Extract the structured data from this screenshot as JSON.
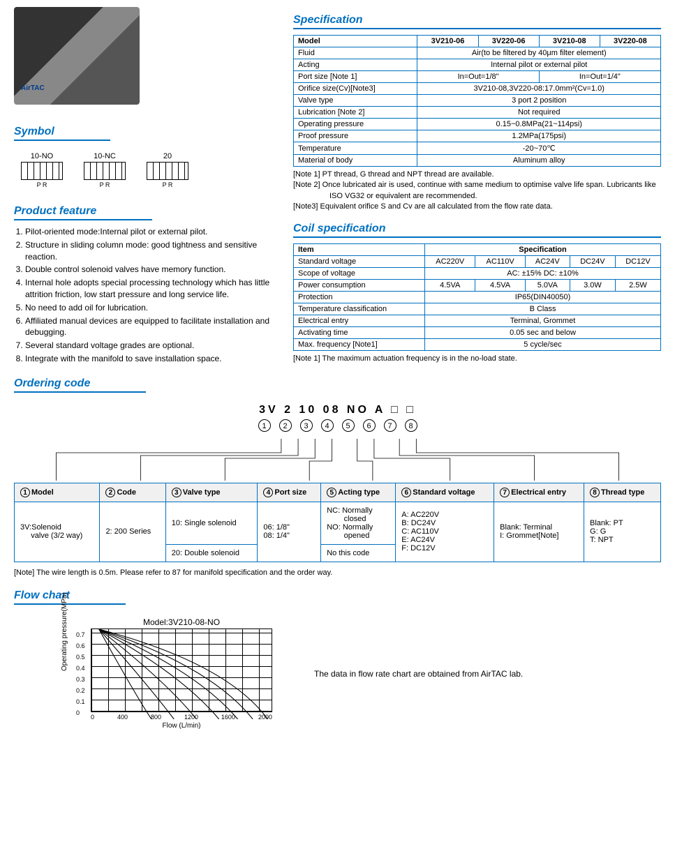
{
  "headings": {
    "symbol": "Symbol",
    "feature": "Product feature",
    "spec": "Specification",
    "coil": "Coil specification",
    "order": "Ordering code",
    "flow": "Flow chart"
  },
  "symbols": [
    "10-NO",
    "10-NC",
    "20"
  ],
  "spec_table": {
    "header": [
      "Model",
      "3V210-06",
      "3V220-06",
      "3V210-08",
      "3V220-08"
    ],
    "rows": [
      {
        "label": "Fluid",
        "value": "Air(to be filtered by 40μm filter element)",
        "span": 4
      },
      {
        "label": "Acting",
        "value": "Internal pilot or external pilot",
        "span": 4
      },
      {
        "label": "Port size  [Note 1]",
        "cells": [
          {
            "v": "In=Out=1/8\"",
            "span": 2
          },
          {
            "v": "In=Out=1/4\"",
            "span": 2
          }
        ]
      },
      {
        "label": "Orifice size(Cv)[Note3]",
        "value": "3V210-08,3V220-08:17.0mm²(Cv=1.0)",
        "span": 4
      },
      {
        "label": "Valve type",
        "value": "3 port 2 position",
        "span": 4
      },
      {
        "label": "Lubrication  [Note 2]",
        "value": "Not required",
        "span": 4
      },
      {
        "label": "Operating pressure",
        "value": "0.15~0.8MPa(21~114psi)",
        "span": 4
      },
      {
        "label": "Proof pressure",
        "value": "1.2MPa(175psi)",
        "span": 4
      },
      {
        "label": "Temperature",
        "value": "-20~70℃",
        "span": 4
      },
      {
        "label": "Material of body",
        "value": "Aluminum alloy",
        "span": 4
      }
    ],
    "notes": [
      "[Note 1]  PT thread, G thread and NPT thread are available.",
      "[Note 2]  Once lubricated air is used, continue with same medium to optimise  valve life span. Lubricants like ISO VG32 or equivalent are recommended.",
      "[Note3] Equivalent orifice S and Cv are all calculated from the flow rate data."
    ]
  },
  "coil_table": {
    "header": [
      "Item",
      "Specification"
    ],
    "rows": [
      {
        "label": "Standard voltage",
        "cells": [
          "AC220V",
          "AC110V",
          "AC24V",
          "DC24V",
          "DC12V"
        ]
      },
      {
        "label": "Scope of voltage",
        "value": "AC: ±15%     DC: ±10%",
        "span": 5
      },
      {
        "label": "Power consumption",
        "cells": [
          "4.5VA",
          "4.5VA",
          "5.0VA",
          "3.0W",
          "2.5W"
        ]
      },
      {
        "label": "Protection",
        "value": "IP65(DIN40050)",
        "span": 5
      },
      {
        "label": "Temperature classification",
        "value": "B Class",
        "span": 5
      },
      {
        "label": "Electrical entry",
        "value": "Terminal, Grommet",
        "span": 5
      },
      {
        "label": "Activating time",
        "value": "0.05 sec and below",
        "span": 5
      },
      {
        "label": "Max. frequency [Note1]",
        "value": "5 cycle/sec",
        "span": 5
      }
    ],
    "notes": [
      "[Note 1]   The maximum actuation frequency is in the no-load state."
    ]
  },
  "features": [
    "Pilot-oriented mode:Internal pilot or external pilot.",
    "Structure in sliding column mode: good tightness and sensitive reaction.",
    "Double control solenoid valves have memory function.",
    "Internal hole adopts special processing technology which has  little attrition friction, low start pressure and long service life.",
    "No need to add oil for lubrication.",
    "Affiliated manual devices are equipped to facilitate installation and debugging.",
    "Several standard voltage grades are optional.",
    "Integrate with the manifold to save installation space."
  ],
  "order": {
    "code": "3V 2  10 08  NO A  □  □",
    "nums": [
      "1",
      "2",
      "3",
      "4",
      "5",
      "6",
      "7",
      "8"
    ],
    "cols": [
      {
        "n": "①",
        "h": "Model",
        "rows": [
          "3V:Solenoid\n     valve (3/2 way)"
        ]
      },
      {
        "n": "②",
        "h": "Code",
        "rows": [
          "2: 200 Series"
        ]
      },
      {
        "n": "③",
        "h": "Valve type",
        "rows": [
          "10: Single solenoid",
          "20: Double solenoid"
        ]
      },
      {
        "n": "④",
        "h": "Port size",
        "rows": [
          "06: 1/8\"\n08: 1/4\""
        ]
      },
      {
        "n": "⑤",
        "h": "Acting type",
        "rows": [
          "NC: Normally\n        closed\nNO: Normally\n        opened",
          "No this code"
        ]
      },
      {
        "n": "⑥",
        "h": "Standard voltage",
        "rows": [
          "A: AC220V\nB: DC24V\nC: AC110V\nE: AC24V\nF: DC12V"
        ]
      },
      {
        "n": "⑦",
        "h": "Electrical entry",
        "rows": [
          "Blank: Terminal\nI: Grommet[Note]"
        ]
      },
      {
        "n": "⑧",
        "h": "Thread type",
        "rows": [
          "Blank: PT\nG: G\nT: NPT"
        ]
      }
    ],
    "note": "[Note] The wire length is 0.5m.  Please refer to 87 for manifold specification and the order way."
  },
  "flow": {
    "title": "Model:3V210-08-NO",
    "ylabel": "Operating pressure(MPa)",
    "xlabel": "Flow      (L/min)",
    "yticks": [
      "0.7",
      "0.6",
      "0.5",
      "0.4",
      "0.3",
      "0.2",
      "0.1",
      "0"
    ],
    "xticks": [
      "0",
      "400",
      "800",
      "1200",
      "1600",
      "2000"
    ],
    "note": "The data in flow rate chart are obtained from AirTAC lab.",
    "curves": [
      "M10,0 Q60,90 80,120",
      "M10,0 Q80,80 110,120",
      "M10,0 Q100,70 140,120",
      "M10,0 Q120,60 170,120",
      "M10,0 Q140,55 195,120",
      "M10,0 Q160,50 215,120",
      "M10,0 Q180,45 235,120"
    ]
  },
  "colors": {
    "accent": "#0070c0"
  }
}
